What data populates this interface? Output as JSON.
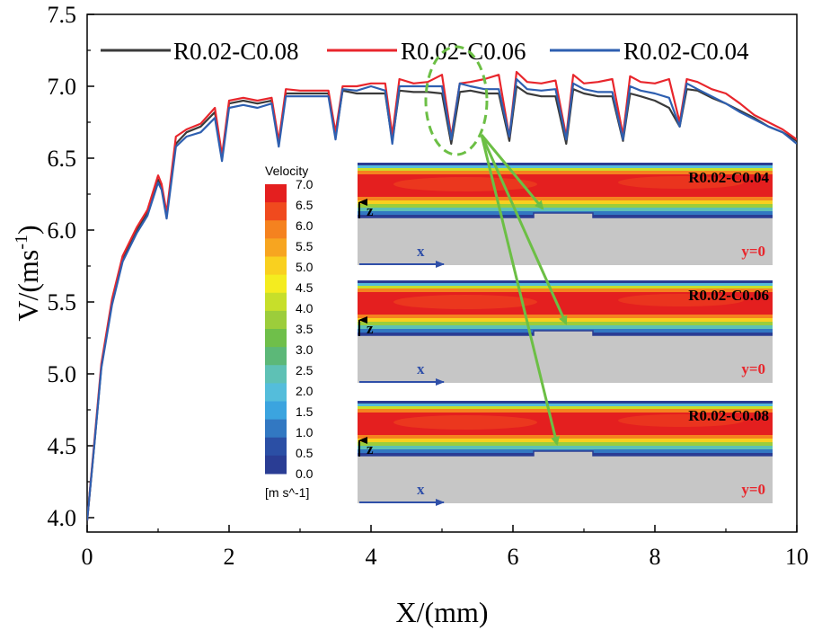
{
  "chart_data": {
    "type": "line",
    "xlabel": "X/(mm)",
    "ylabel_main": "V/(ms",
    "ylabel_sup": "-1",
    "ylabel_end": ")",
    "xlim": [
      0,
      10
    ],
    "ylim": [
      3.9,
      7.5
    ],
    "xticks": [
      0,
      2,
      4,
      6,
      8,
      10
    ],
    "yticks": [
      4.0,
      4.5,
      5.0,
      5.5,
      6.0,
      6.5,
      7.0,
      7.5
    ],
    "xtick_labels": [
      "0",
      "2",
      "4",
      "6",
      "8",
      "10"
    ],
    "ytick_labels": [
      "4.0",
      "4.5",
      "5.0",
      "5.5",
      "6.0",
      "6.5",
      "7.0",
      "7.5"
    ],
    "legend_position": "top",
    "series": [
      {
        "name": "R0.02-C0.08",
        "color": "#3a3a3a",
        "x": [
          0,
          0.1,
          0.2,
          0.35,
          0.5,
          0.7,
          0.85,
          1.0,
          1.05,
          1.12,
          1.25,
          1.4,
          1.6,
          1.8,
          1.9,
          2.0,
          2.2,
          2.4,
          2.6,
          2.7,
          2.8,
          3.0,
          3.2,
          3.4,
          3.5,
          3.6,
          3.8,
          4.0,
          4.2,
          4.3,
          4.4,
          4.6,
          4.8,
          5.0,
          5.13,
          5.25,
          5.4,
          5.6,
          5.8,
          5.95,
          6.05,
          6.2,
          6.4,
          6.6,
          6.75,
          6.85,
          7.0,
          7.2,
          7.4,
          7.55,
          7.65,
          7.8,
          8.0,
          8.2,
          8.35,
          8.45,
          8.6,
          8.8,
          9.0,
          9.2,
          9.4,
          9.6,
          9.8,
          10.0
        ],
        "y": [
          3.98,
          4.5,
          5.05,
          5.5,
          5.8,
          6.0,
          6.12,
          6.35,
          6.3,
          6.1,
          6.6,
          6.68,
          6.72,
          6.82,
          6.5,
          6.88,
          6.9,
          6.88,
          6.9,
          6.6,
          6.95,
          6.95,
          6.95,
          6.95,
          6.65,
          6.97,
          6.95,
          6.95,
          6.95,
          6.62,
          6.97,
          6.96,
          6.96,
          6.95,
          6.6,
          6.96,
          6.97,
          6.95,
          6.95,
          6.62,
          7.0,
          6.95,
          6.93,
          6.93,
          6.6,
          6.98,
          6.95,
          6.93,
          6.93,
          6.62,
          6.95,
          6.93,
          6.9,
          6.85,
          6.72,
          6.98,
          6.97,
          6.92,
          6.88,
          6.83,
          6.78,
          6.72,
          6.68,
          6.62
        ]
      },
      {
        "name": "R0.02-C0.06",
        "color": "#e8262c",
        "x": [
          0,
          0.1,
          0.2,
          0.35,
          0.5,
          0.7,
          0.85,
          1.0,
          1.05,
          1.12,
          1.25,
          1.4,
          1.6,
          1.8,
          1.9,
          2.0,
          2.2,
          2.4,
          2.6,
          2.7,
          2.8,
          3.0,
          3.2,
          3.4,
          3.5,
          3.6,
          3.8,
          4.0,
          4.2,
          4.3,
          4.4,
          4.6,
          4.8,
          5.0,
          5.13,
          5.25,
          5.4,
          5.6,
          5.8,
          5.95,
          6.05,
          6.2,
          6.4,
          6.6,
          6.75,
          6.85,
          7.0,
          7.2,
          7.4,
          7.55,
          7.65,
          7.8,
          8.0,
          8.2,
          8.35,
          8.45,
          8.6,
          8.8,
          9.0,
          9.2,
          9.4,
          9.6,
          9.8,
          10.0
        ],
        "y": [
          3.98,
          4.52,
          5.07,
          5.52,
          5.82,
          6.02,
          6.14,
          6.38,
          6.32,
          6.12,
          6.65,
          6.7,
          6.74,
          6.85,
          6.52,
          6.9,
          6.92,
          6.9,
          6.92,
          6.62,
          6.98,
          6.97,
          6.97,
          6.97,
          6.68,
          7.0,
          7.0,
          7.02,
          7.02,
          6.66,
          7.05,
          7.02,
          7.03,
          7.08,
          6.65,
          7.02,
          7.03,
          7.05,
          7.08,
          6.65,
          7.1,
          7.03,
          7.02,
          7.04,
          6.65,
          7.08,
          7.02,
          7.03,
          7.05,
          6.66,
          7.07,
          7.03,
          7.02,
          7.05,
          6.75,
          7.05,
          7.03,
          6.98,
          6.95,
          6.88,
          6.8,
          6.75,
          6.7,
          6.63
        ]
      },
      {
        "name": "R0.02-C0.04",
        "color": "#2e5fb0",
        "x": [
          0,
          0.1,
          0.2,
          0.35,
          0.5,
          0.7,
          0.85,
          1.0,
          1.05,
          1.12,
          1.25,
          1.4,
          1.6,
          1.8,
          1.9,
          2.0,
          2.2,
          2.4,
          2.6,
          2.7,
          2.8,
          3.0,
          3.2,
          3.4,
          3.5,
          3.6,
          3.8,
          4.0,
          4.2,
          4.3,
          4.4,
          4.6,
          4.8,
          5.0,
          5.13,
          5.25,
          5.4,
          5.6,
          5.8,
          5.95,
          6.05,
          6.2,
          6.4,
          6.6,
          6.75,
          6.85,
          7.0,
          7.2,
          7.4,
          7.55,
          7.65,
          7.8,
          8.0,
          8.2,
          8.35,
          8.45,
          8.6,
          8.8,
          9.0,
          9.2,
          9.4,
          9.6,
          9.8,
          10.0
        ],
        "y": [
          3.98,
          4.5,
          5.04,
          5.48,
          5.78,
          5.98,
          6.1,
          6.33,
          6.28,
          6.08,
          6.58,
          6.65,
          6.68,
          6.78,
          6.48,
          6.85,
          6.87,
          6.85,
          6.88,
          6.58,
          6.93,
          6.93,
          6.93,
          6.93,
          6.63,
          6.98,
          6.97,
          7.0,
          6.97,
          6.6,
          7.0,
          7.0,
          7.0,
          7.0,
          6.63,
          7.02,
          7.0,
          6.98,
          6.98,
          6.65,
          7.05,
          6.98,
          6.97,
          6.98,
          6.63,
          7.02,
          6.98,
          6.96,
          6.96,
          6.63,
          7.0,
          6.97,
          6.95,
          6.92,
          6.72,
          7.02,
          6.98,
          6.93,
          6.88,
          6.82,
          6.77,
          6.72,
          6.68,
          6.6
        ]
      }
    ]
  },
  "colorbar": {
    "title": "Velocity",
    "unit": "[m s^-1]",
    "levels": [
      "7.0",
      "6.5",
      "6.0",
      "5.5",
      "5.0",
      "4.5",
      "4.0",
      "3.5",
      "3.0",
      "2.5",
      "2.0",
      "1.5",
      "1.0",
      "0.5",
      "0.0"
    ],
    "colors": [
      "#e41f1f",
      "#f04a1e",
      "#f5821f",
      "#f7a520",
      "#f9d01f",
      "#f4ec1f",
      "#c7df2a",
      "#9ccd3b",
      "#6fbf4a",
      "#5cb878",
      "#5ec1b5",
      "#54bddb",
      "#3ba4df",
      "#3278c2",
      "#2b4fa5",
      "#2a3d94"
    ]
  },
  "panels": [
    {
      "label": "R0.02-C0.04",
      "y_label": "y=0",
      "z_label": "z",
      "x_label": "x"
    },
    {
      "label": "R0.02-C0.06",
      "y_label": "y=0",
      "z_label": "z",
      "x_label": "x"
    },
    {
      "label": "R0.02-C0.08",
      "y_label": "y=0",
      "z_label": "z",
      "x_label": "x"
    }
  ]
}
